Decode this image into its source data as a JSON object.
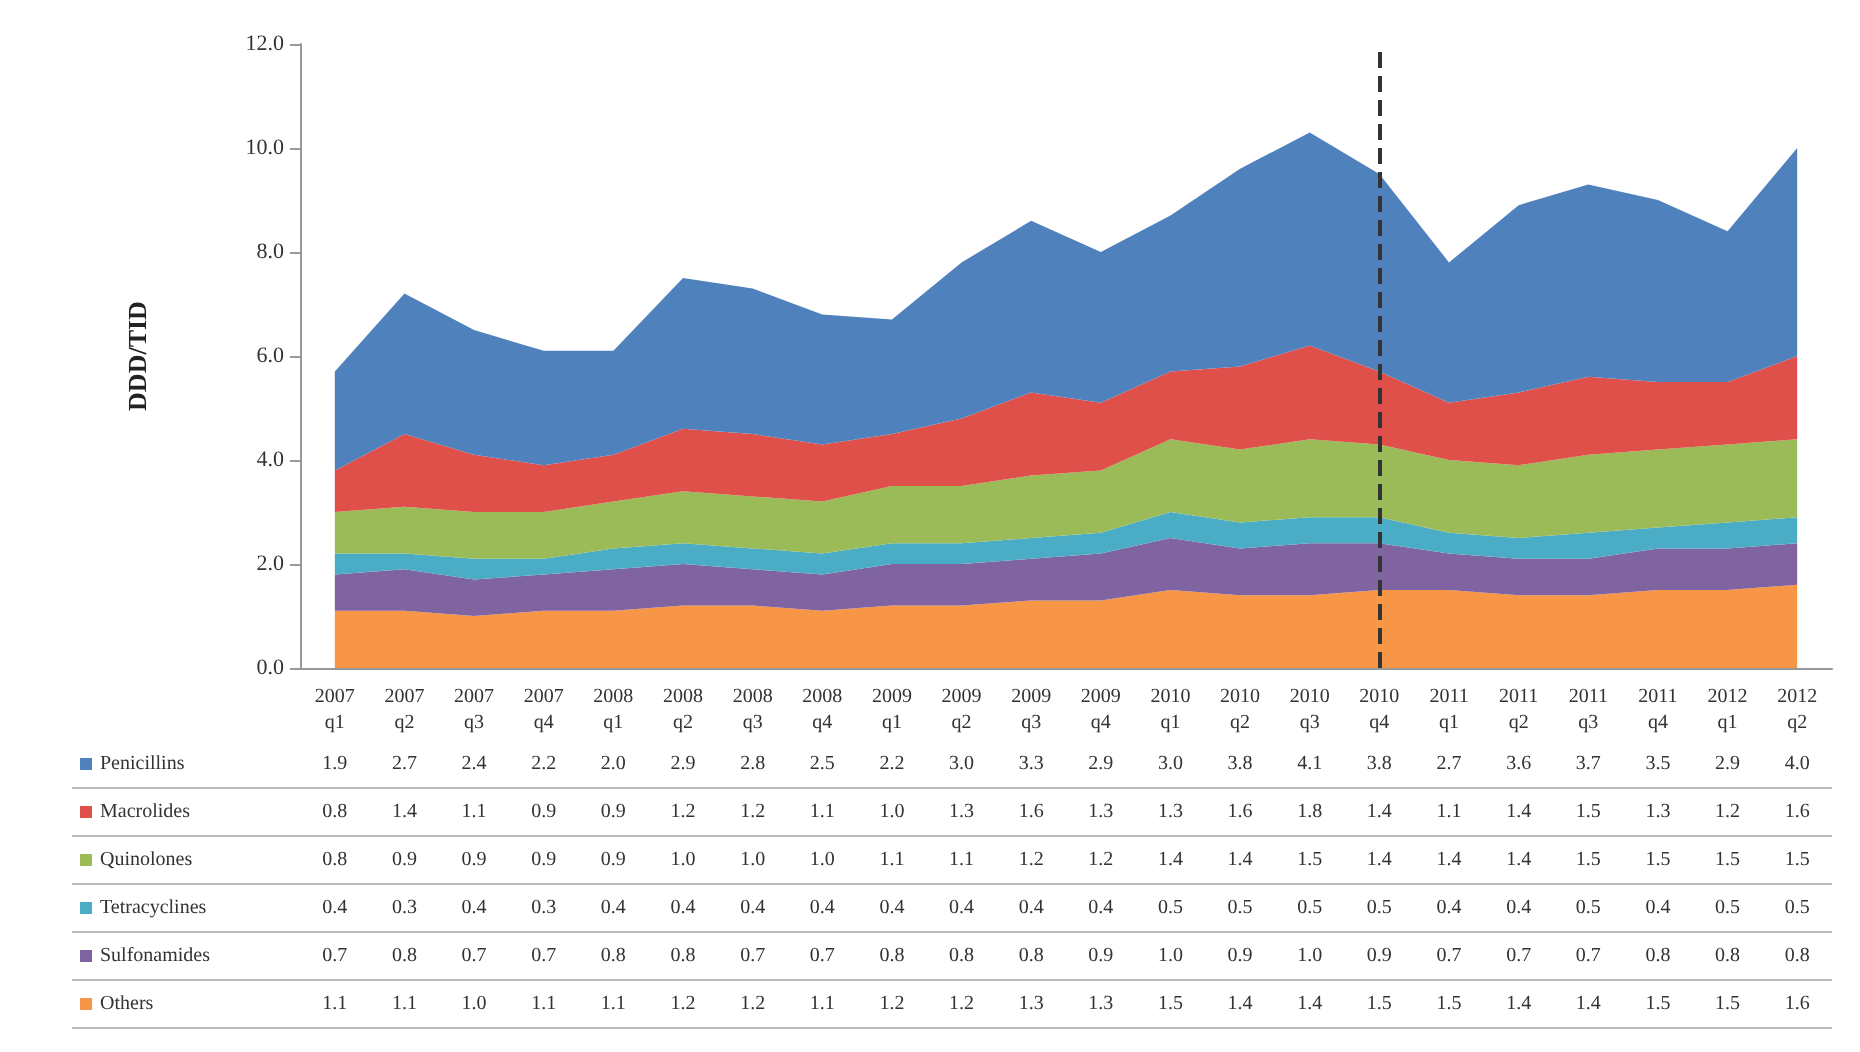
{
  "chart_data": {
    "type": "area",
    "stacked": true,
    "ylabel": "DDD/TID",
    "categories": [
      "2007\nq1",
      "2007\nq2",
      "2007\nq3",
      "2007\nq4",
      "2008\nq1",
      "2008\nq2",
      "2008\nq3",
      "2008\nq4",
      "2009\nq1",
      "2009\nq2",
      "2009\nq3",
      "2009\nq4",
      "2010\nq1",
      "2010\nq2",
      "2010\nq3",
      "2010\nq4",
      "2011\nq1",
      "2011\nq2",
      "2011\nq3",
      "2011\nq4",
      "2012\nq1",
      "2012\nq2"
    ],
    "series": [
      {
        "name": "Others",
        "color": "#f79646",
        "values": [
          1.1,
          1.1,
          1.0,
          1.1,
          1.1,
          1.2,
          1.2,
          1.1,
          1.2,
          1.2,
          1.3,
          1.3,
          1.5,
          1.4,
          1.4,
          1.5,
          1.5,
          1.4,
          1.4,
          1.5,
          1.5,
          1.6
        ],
        "value_labels": [
          "1.1",
          "1.1",
          "1.0",
          "1.1",
          "1.1",
          "1.2",
          "1.2",
          "1.1",
          "1.2",
          "1.2",
          "1.3",
          "1.3",
          "1.5",
          "1.4",
          "1.4",
          "1.5",
          "1.5",
          "1.4",
          "1.4",
          "1.5",
          "1.5",
          "1.6"
        ]
      },
      {
        "name": "Sulfonamides",
        "color": "#8064a2",
        "values": [
          0.7,
          0.8,
          0.7,
          0.7,
          0.8,
          0.8,
          0.7,
          0.7,
          0.8,
          0.8,
          0.8,
          0.9,
          1.0,
          0.9,
          1.0,
          0.9,
          0.7,
          0.7,
          0.7,
          0.8,
          0.8,
          0.8
        ],
        "value_labels": [
          "0.7",
          "0.8",
          "0.7",
          "0.7",
          "0.8",
          "0.8",
          "0.7",
          "0.7",
          "0.8",
          "0.8",
          "0.8",
          "0.9",
          "1.0",
          "0.9",
          "1.0",
          "0.9",
          "0.7",
          "0.7",
          "0.7",
          "0.8",
          "0.8",
          "0.8"
        ]
      },
      {
        "name": "Tetracyclines",
        "color": "#4bacc6",
        "values": [
          0.4,
          0.3,
          0.4,
          0.3,
          0.4,
          0.4,
          0.4,
          0.4,
          0.4,
          0.4,
          0.4,
          0.4,
          0.5,
          0.5,
          0.5,
          0.5,
          0.4,
          0.4,
          0.5,
          0.4,
          0.5,
          0.5
        ],
        "value_labels": [
          "0.4",
          "0.3",
          "0.4",
          "0.3",
          "0.4",
          "0.4",
          "0.4",
          "0.4",
          "0.4",
          "0.4",
          "0.4",
          "0.4",
          "0.5",
          "0.5",
          "0.5",
          "0.5",
          "0.4",
          "0.4",
          "0.5",
          "0.4",
          "0.5",
          "0.5"
        ]
      },
      {
        "name": "Quinolones",
        "color": "#9bbb59",
        "values": [
          0.8,
          0.9,
          0.9,
          0.9,
          0.9,
          1.0,
          1.0,
          1.0,
          1.1,
          1.1,
          1.2,
          1.2,
          1.4,
          1.4,
          1.5,
          1.4,
          1.4,
          1.4,
          1.5,
          1.5,
          1.5,
          1.5
        ],
        "value_labels": [
          "0.8",
          "0.9",
          "0.9",
          "0.9",
          "0.9",
          "1.0",
          "1.0",
          "1.0",
          "1.1",
          "1.1",
          "1.2",
          "1.2",
          "1.4",
          "1.4",
          "1.5",
          "1.4",
          "1.4",
          "1.4",
          "1.5",
          "1.5",
          "1.5",
          "1.5"
        ]
      },
      {
        "name": "Macrolides",
        "color": "#e0504a",
        "values": [
          0.8,
          1.4,
          1.1,
          0.9,
          0.9,
          1.2,
          1.2,
          1.1,
          1.0,
          1.3,
          1.6,
          1.3,
          1.3,
          1.6,
          1.8,
          1.4,
          1.1,
          1.4,
          1.5,
          1.3,
          1.2,
          1.6
        ],
        "value_labels": [
          "0.8",
          "1.4",
          "1.1",
          "0.9",
          "0.9",
          "1.2",
          "1.2",
          "1.1",
          "1.0",
          "1.3",
          "1.6",
          "1.3",
          "1.3",
          "1.6",
          "1.8",
          "1.4",
          "1.1",
          "1.4",
          "1.5",
          "1.3",
          "1.2",
          "1.6"
        ]
      },
      {
        "name": "Penicillins",
        "color": "#4f81bd",
        "values": [
          1.9,
          2.7,
          2.4,
          2.2,
          2.0,
          2.9,
          2.8,
          2.5,
          2.2,
          3.0,
          3.3,
          2.9,
          3.0,
          3.8,
          4.1,
          3.8,
          2.7,
          3.6,
          3.7,
          3.5,
          2.9,
          4.0
        ],
        "value_labels": [
          "1.9",
          "2.7",
          "2.4",
          "2.2",
          "2.0",
          "2.9",
          "2.8",
          "2.5",
          "2.2",
          "3.0",
          "3.3",
          "2.9",
          "3.0",
          "3.8",
          "4.1",
          "3.8",
          "2.7",
          "3.6",
          "3.7",
          "3.5",
          "2.9",
          "4.0"
        ]
      }
    ],
    "ylim": [
      0,
      12
    ],
    "yticks": [
      {
        "value": 0,
        "label": "0.0"
      },
      {
        "value": 2,
        "label": "2.0"
      },
      {
        "value": 4,
        "label": "4.0"
      },
      {
        "value": 6,
        "label": "6.0"
      },
      {
        "value": 8,
        "label": "8.0"
      },
      {
        "value": 10,
        "label": "10.0"
      },
      {
        "value": 12,
        "label": "12.0"
      }
    ],
    "ref_lines": [
      {
        "axis": "x",
        "value": "2010\nq4",
        "color": "#333333",
        "line_style": "dashed"
      }
    ],
    "legend": "bottom",
    "grid": false
  }
}
